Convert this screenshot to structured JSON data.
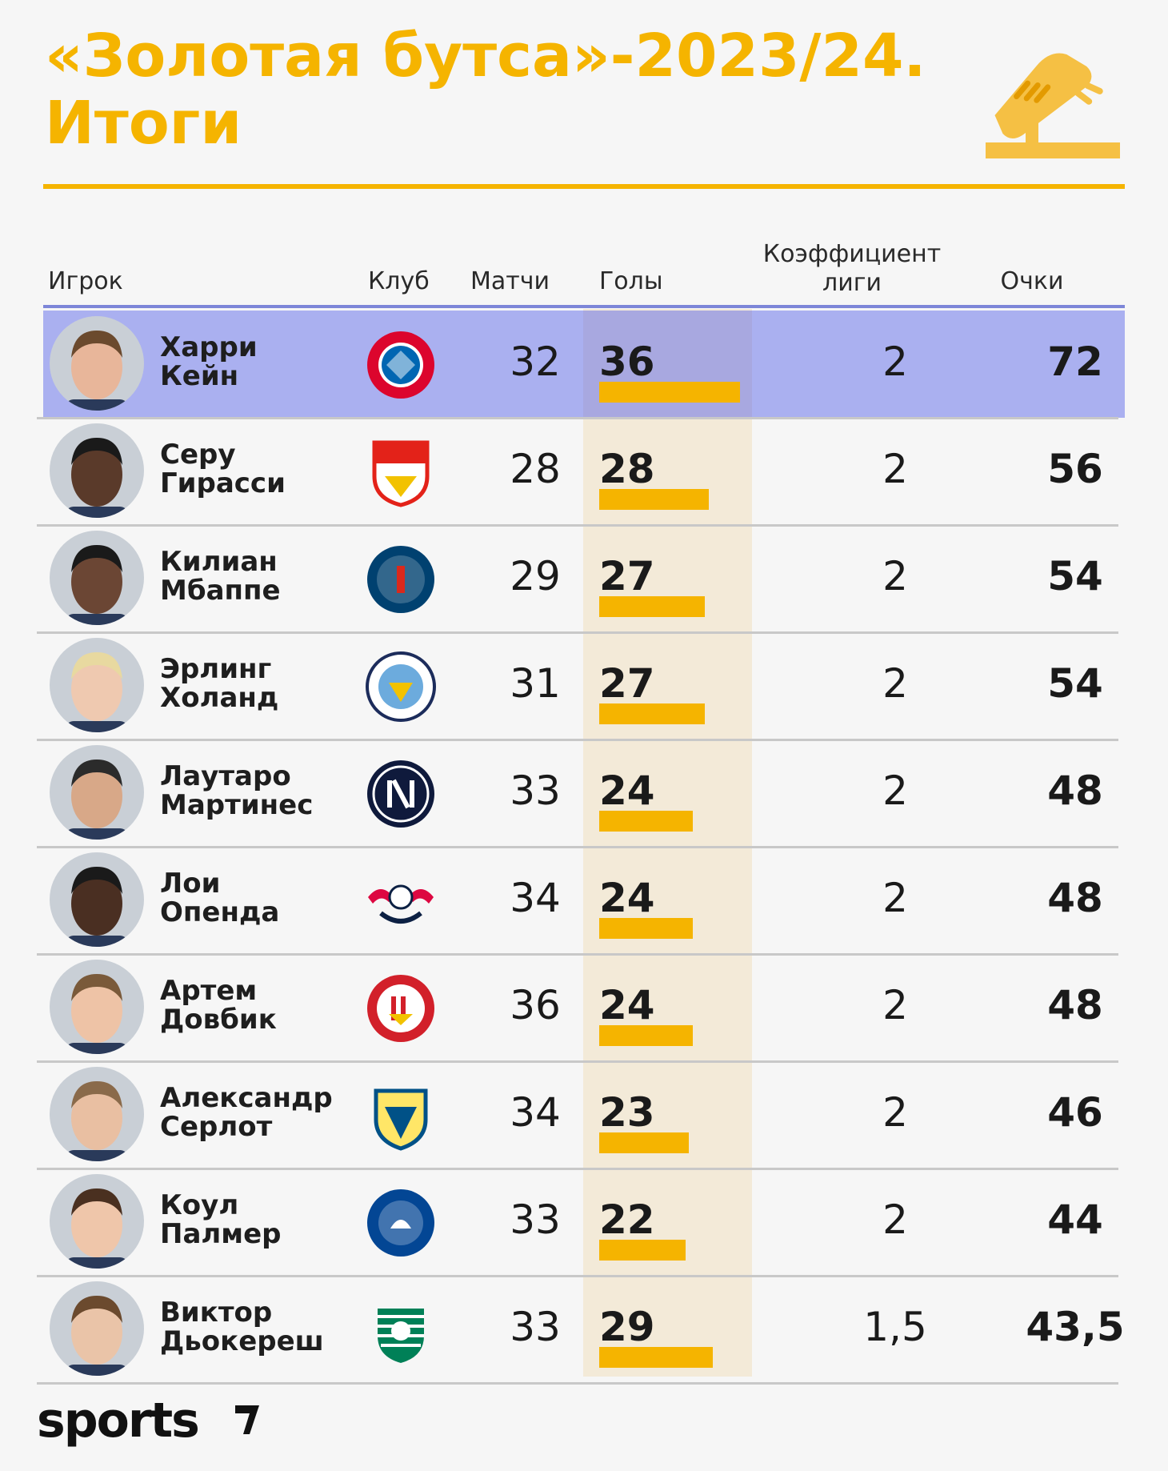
{
  "title": {
    "line1": "«Золотая бутса»-2023/24.",
    "line2": "Итоги"
  },
  "headers": {
    "player": "Игрок",
    "club": "Клуб",
    "matches": "Матчи",
    "goals": "Голы",
    "coef_line1": "Коэффициент",
    "coef_line2": "лиги",
    "points": "Очки"
  },
  "colors": {
    "accent": "#f5b400",
    "highlight": "#aab0f0",
    "goals_bg": "#f3ead8"
  },
  "max_goals": 36,
  "rows": [
    {
      "first": "Харри",
      "last": "Кейн",
      "club": "bayern-munich-logo",
      "matches": "32",
      "goals": "36",
      "coef": "2",
      "points": "72",
      "highlight": true
    },
    {
      "first": "Серу",
      "last": "Гирасси",
      "club": "vfb-stuttgart-logo",
      "matches": "28",
      "goals": "28",
      "coef": "2",
      "points": "56"
    },
    {
      "first": "Килиан",
      "last": "Мбаппе",
      "club": "psg-logo",
      "matches": "29",
      "goals": "27",
      "coef": "2",
      "points": "54"
    },
    {
      "first": "Эрлинг",
      "last": "Холанд",
      "club": "manchester-city-logo",
      "matches": "31",
      "goals": "27",
      "coef": "2",
      "points": "54"
    },
    {
      "first": "Лаутаро",
      "last": "Мартинес",
      "club": "inter-logo",
      "matches": "33",
      "goals": "24",
      "coef": "2",
      "points": "48"
    },
    {
      "first": "Лои",
      "last": "Опенда",
      "club": "rb-leipzig-logo",
      "matches": "34",
      "goals": "24",
      "coef": "2",
      "points": "48"
    },
    {
      "first": "Артем",
      "last": "Довбик",
      "club": "girona-logo",
      "matches": "36",
      "goals": "24",
      "coef": "2",
      "points": "48"
    },
    {
      "first": "Александр",
      "last": "Серлот",
      "club": "villarreal-logo",
      "matches": "34",
      "goals": "23",
      "coef": "2",
      "points": "46"
    },
    {
      "first": "Коул",
      "last": "Палмер",
      "club": "chelsea-logo",
      "matches": "33",
      "goals": "22",
      "coef": "2",
      "points": "44"
    },
    {
      "first": "Виктор",
      "last": "Дьокереш",
      "club": "sporting-logo",
      "matches": "33",
      "goals": "29",
      "coef": "1,5",
      "points": "43,5"
    }
  ],
  "footer": {
    "brand": "sports"
  }
}
